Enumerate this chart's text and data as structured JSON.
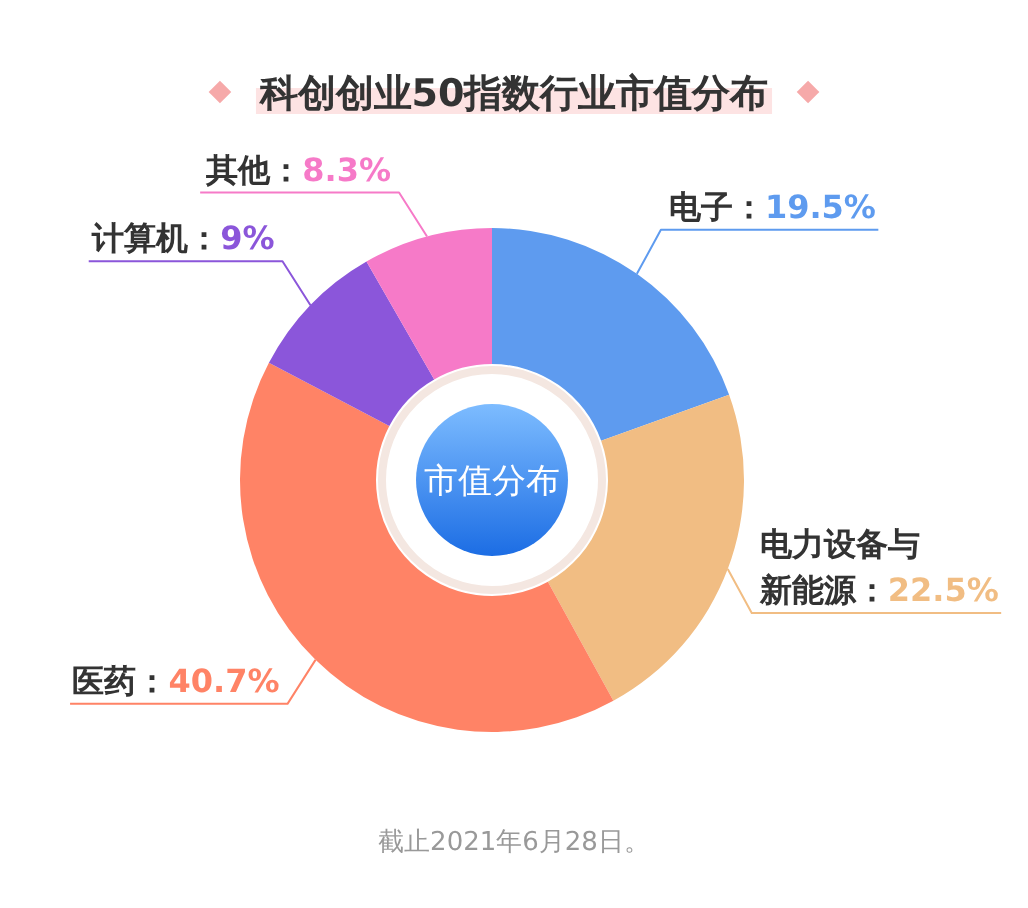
{
  "chart_data": {
    "type": "donut",
    "title": "科创创业50指数行业市值分布",
    "categories": [
      "电子",
      "电力设备与新能源",
      "医药",
      "计算机",
      "其他"
    ],
    "values": [
      19.5,
      22.5,
      40.7,
      9,
      8.3
    ],
    "colors": [
      "#5e9bef",
      "#f1bd83",
      "#ff8366",
      "#8b56da",
      "#f67ac8"
    ],
    "value_labels": [
      "19.5%",
      "22.5%",
      "40.7%",
      "9%",
      "8.3%"
    ],
    "annotations": [
      "市值分布",
      "截止2021年6月28日。"
    ]
  }
}
